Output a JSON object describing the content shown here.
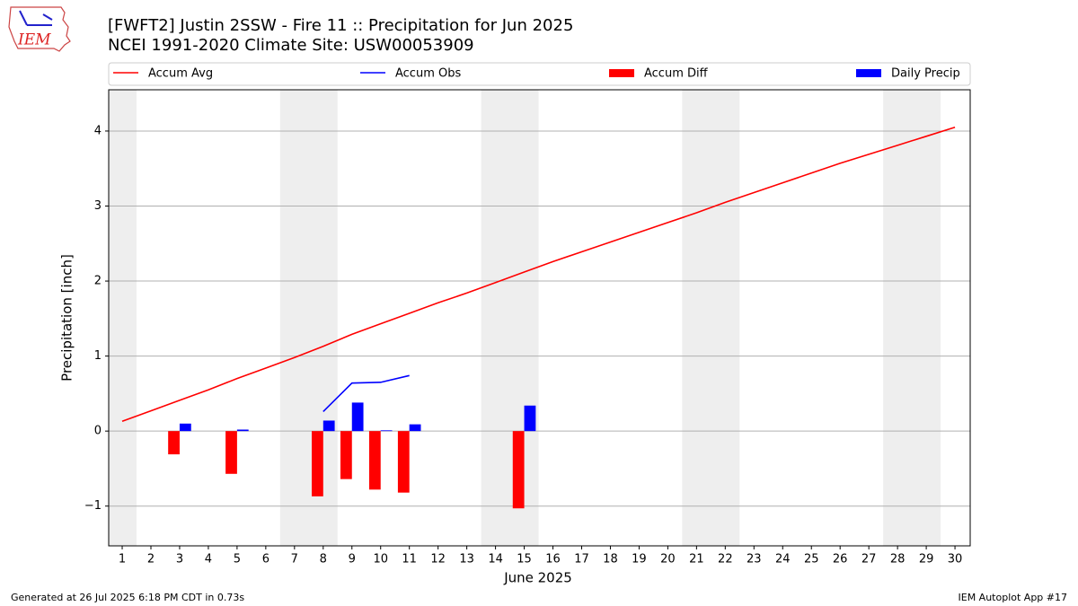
{
  "logo_text": "IEM",
  "footer_left": "Generated at 26 Jul 2025 6:18 PM CDT in 0.73s",
  "footer_right": "IEM Autoplot App #17",
  "chart_data": {
    "type": "bar",
    "title": "[FWFT2] Justin 2SSW - Fire 11 :: Precipitation for Jun 2025",
    "subtitle": "NCEI 1991-2020 Climate Site: USW00053909",
    "xlabel": "June 2025",
    "ylabel": "Precipitation [inch]",
    "x": [
      1,
      2,
      3,
      4,
      5,
      6,
      7,
      8,
      9,
      10,
      11,
      12,
      13,
      14,
      15,
      16,
      17,
      18,
      19,
      20,
      21,
      22,
      23,
      24,
      25,
      26,
      27,
      28,
      29,
      30
    ],
    "xlim": [
      0.53,
      30.53
    ],
    "xticks": [
      1,
      2,
      3,
      4,
      5,
      6,
      7,
      8,
      9,
      10,
      11,
      12,
      13,
      14,
      15,
      16,
      17,
      18,
      19,
      20,
      21,
      22,
      23,
      24,
      25,
      26,
      27,
      28,
      29,
      30
    ],
    "ylim": [
      -1.53,
      4.55
    ],
    "yticks": [
      {
        "value": -1,
        "label": "−1"
      },
      0,
      1,
      2,
      3,
      4
    ],
    "grid": true,
    "shaded_spans": [
      [
        0.5,
        1.5
      ],
      [
        6.5,
        8.5
      ],
      [
        13.5,
        15.5
      ],
      [
        20.5,
        22.5
      ],
      [
        27.5,
        29.5
      ]
    ],
    "shade_color": "#eeeeee",
    "legend": "top",
    "series": [
      {
        "name": "Accum Avg",
        "type": "line",
        "color": "#ff0000",
        "values": [
          0.13,
          0.27,
          0.41,
          0.55,
          0.7,
          0.84,
          0.98,
          1.13,
          1.29,
          1.43,
          1.57,
          1.71,
          1.84,
          1.98,
          2.12,
          2.26,
          2.39,
          2.52,
          2.65,
          2.78,
          2.91,
          3.05,
          3.18,
          3.31,
          3.44,
          3.57,
          3.69,
          3.81,
          3.93,
          4.05
        ]
      },
      {
        "name": "Accum Obs",
        "type": "line",
        "color": "#0000ff",
        "values": [
          null,
          null,
          null,
          null,
          null,
          null,
          null,
          0.26,
          0.64,
          0.65,
          0.74,
          null,
          null,
          null,
          null,
          null,
          null,
          null,
          null,
          null,
          null,
          null,
          null,
          null,
          null,
          null,
          null,
          null,
          null,
          null
        ]
      },
      {
        "name": "Accum Diff",
        "type": "bar",
        "color": "#ff0000",
        "offset": -0.2,
        "values": [
          null,
          null,
          -0.31,
          null,
          -0.57,
          null,
          null,
          -0.87,
          -0.64,
          -0.78,
          -0.82,
          null,
          null,
          null,
          -1.03,
          null,
          null,
          null,
          null,
          null,
          null,
          null,
          null,
          null,
          null,
          null,
          null,
          null,
          null,
          null
        ]
      },
      {
        "name": "Daily Precip",
        "type": "bar",
        "color": "#0000ff",
        "offset": 0.2,
        "values": [
          null,
          null,
          0.1,
          null,
          0.02,
          null,
          null,
          0.14,
          0.38,
          0.01,
          0.09,
          null,
          null,
          null,
          0.34,
          null,
          null,
          null,
          null,
          null,
          null,
          null,
          null,
          null,
          null,
          null,
          null,
          null,
          null,
          null
        ]
      }
    ]
  }
}
